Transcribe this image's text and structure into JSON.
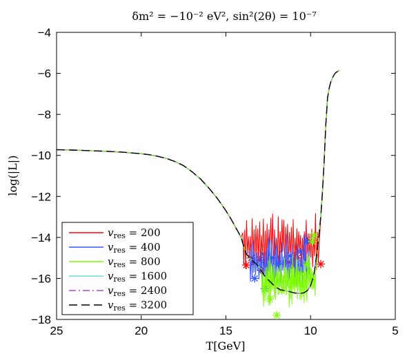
{
  "chart_data": {
    "type": "line",
    "title": "δm² = −10⁻²  eV², sin²(2θ) = 10⁻⁷",
    "xlabel": "T[GeV]",
    "ylabel": "log(|L|)",
    "xlim": [
      25,
      5
    ],
    "ylim": [
      -18,
      -4
    ],
    "x_reversed": true,
    "grid": false,
    "legend_position": "bottom-left",
    "xticks": [
      25,
      20,
      15,
      10,
      5
    ],
    "xtick_labels": [
      "25",
      "20",
      "15",
      "10",
      "5"
    ],
    "yticks": [
      -4,
      -6,
      -8,
      -10,
      -12,
      -14,
      -16,
      -18
    ],
    "ytick_labels": [
      "−4",
      "−6",
      "−8",
      "−10",
      "−12",
      "−14",
      "−16",
      "−18"
    ],
    "base_curve": {
      "x": [
        25,
        24,
        23,
        22,
        21,
        20,
        19.5,
        19,
        18.5,
        18,
        17.5,
        17,
        16.5,
        16,
        15.5,
        15,
        14.7,
        14.5,
        14.3,
        14.1,
        14.0,
        13.8,
        13.5,
        13.2,
        13.0,
        12.7,
        12.4,
        12.1,
        11.8,
        11.5,
        11.2,
        11.0,
        10.8,
        10.6,
        10.4,
        10.2,
        10.0,
        9.8,
        9.6,
        9.4,
        9.3,
        9.2,
        9.1,
        9.0,
        8.9,
        8.8,
        8.7,
        8.6,
        8.5,
        8.3
      ],
      "y": [
        -9.72,
        -9.74,
        -9.77,
        -9.8,
        -9.85,
        -9.92,
        -9.97,
        -10.05,
        -10.15,
        -10.3,
        -10.5,
        -10.8,
        -11.15,
        -11.6,
        -12.1,
        -12.7,
        -13.1,
        -13.4,
        -13.7,
        -14.0,
        -14.3,
        -14.8,
        -15.1,
        -15.3,
        -15.5,
        -15.9,
        -16.15,
        -16.4,
        -16.55,
        -16.6,
        -16.65,
        -16.7,
        -16.72,
        -16.73,
        -16.7,
        -16.6,
        -16.35,
        -15.8,
        -14.6,
        -13.0,
        -11.8,
        -10.3,
        -8.5,
        -7.2,
        -6.7,
        -6.4,
        -6.2,
        -6.05,
        -5.95,
        -5.85
      ]
    },
    "series": [
      {
        "name": "v_res = 200",
        "label_main": "v",
        "label_sub": "res",
        "label_rest": " = 200",
        "color": "#ff0000",
        "style": "solid",
        "noise": {
          "x_start": 14.0,
          "x_end": 9.5,
          "lo": -15.6,
          "hi": -12.8,
          "step": 0.055,
          "seed": 11
        },
        "star_points": [
          [
            13.8,
            -15.35
          ],
          [
            13.5,
            -15.0
          ],
          [
            12.9,
            -15.6
          ],
          [
            11.3,
            -15.2
          ],
          [
            10.8,
            -15.0
          ],
          [
            9.4,
            -15.3
          ],
          [
            13.0,
            -15.1
          ]
        ]
      },
      {
        "name": "v_res = 400",
        "label_main": "v",
        "label_sub": "res",
        "label_rest": " = 400",
        "color": "#3355ff",
        "style": "solid",
        "noise": {
          "x_start": 13.6,
          "x_end": 10.0,
          "lo": -16.5,
          "hi": -13.8,
          "step": 0.05,
          "seed": 23
        },
        "star_points": [
          [
            13.3,
            -16.0
          ],
          [
            12.7,
            -16.5
          ],
          [
            12.3,
            -15.0
          ],
          [
            11.9,
            -15.3
          ],
          [
            11.2,
            -14.9
          ],
          [
            10.6,
            -14.7
          ],
          [
            10.2,
            -14.2
          ]
        ]
      },
      {
        "name": "v_res = 800",
        "label_main": "v",
        "label_sub": "res",
        "label_rest": " = 800",
        "color": "#7cfc00",
        "style": "solid",
        "noise": {
          "x_start": 12.9,
          "x_end": 9.7,
          "lo": -17.4,
          "hi": -14.6,
          "step": 0.04,
          "seed": 37
        },
        "star_points": [
          [
            12.0,
            -17.8
          ],
          [
            12.4,
            -17.0
          ],
          [
            11.7,
            -16.6
          ],
          [
            11.0,
            -16.2
          ],
          [
            10.5,
            -15.8
          ],
          [
            10.2,
            -15.3
          ],
          [
            9.9,
            -14.2
          ],
          [
            9.8,
            -13.9
          ],
          [
            10.9,
            -16.0
          ]
        ]
      },
      {
        "name": "v_res = 1600",
        "label_main": "v",
        "label_sub": "res",
        "label_rest": " = 1600",
        "color": "#66ddcc",
        "style": "solid",
        "noise": null,
        "star_points": []
      },
      {
        "name": "v_res = 2400",
        "label_main": "v",
        "label_sub": "res",
        "label_rest": " = 2400",
        "color": "#aa44ee",
        "style": "dashdot",
        "noise": null,
        "star_points": []
      },
      {
        "name": "v_res = 3200",
        "label_main": "v",
        "label_sub": "res",
        "label_rest": " = 3200",
        "color": "#000000",
        "style": "dashed",
        "noise": null,
        "star_points": []
      }
    ]
  }
}
